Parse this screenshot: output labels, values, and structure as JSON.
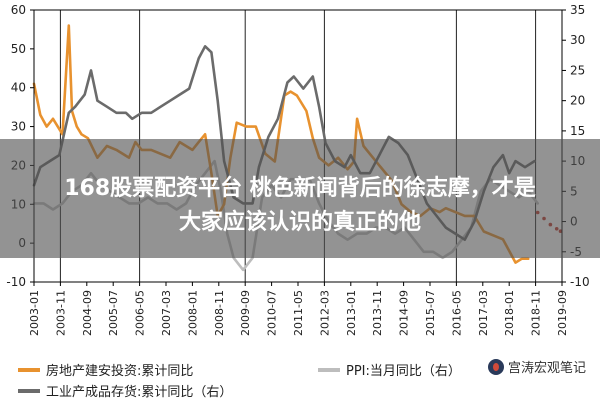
{
  "banner": {
    "line1": "168股票配资平台 桃色新闻背后的徐志摩，才是",
    "line2": "大家应该认识的真正的他"
  },
  "watermark": {
    "text": "宫涛宏观笔记",
    "icon": "wechat-account-icon"
  },
  "chart_data": {
    "type": "line",
    "x_labels": [
      "2003-01",
      "2003-11",
      "2004-09",
      "2005-07",
      "2006-05",
      "2007-03",
      "2008-01",
      "2008-11",
      "2009-09",
      "2010-07",
      "2011-05",
      "2012-03",
      "2013-01",
      "2013-11",
      "2014-09",
      "2015-07",
      "2016-05",
      "2017-03",
      "2018-01",
      "2018-11",
      "2019-09"
    ],
    "y_left": {
      "ticks": [
        -10,
        0,
        10,
        20,
        30,
        40,
        50,
        60
      ],
      "range": [
        -10,
        60
      ]
    },
    "y_right": {
      "ticks": [
        -10,
        -5,
        0,
        5,
        10,
        15,
        20,
        25,
        30,
        35
      ],
      "range": [
        -10,
        35
      ]
    },
    "vertical_lines": [
      "2003-11",
      "2006-05",
      "2009-09",
      "2012-03",
      "2016-05",
      "2018-11"
    ],
    "grid": false,
    "legend_position": "bottom",
    "series": [
      {
        "name": "房地产建安投资:累计同比",
        "axis": "left",
        "color": "#e8922f",
        "x": [
          2003.0,
          2003.2,
          2003.4,
          2003.6,
          2003.9,
          2004.1,
          2004.2,
          2004.35,
          2004.5,
          2004.7,
          2005.0,
          2005.3,
          2005.6,
          2006.0,
          2006.2,
          2006.4,
          2006.7,
          2007.0,
          2007.3,
          2007.6,
          2008.0,
          2008.2,
          2008.4,
          2008.6,
          2008.8,
          2009.0,
          2009.2,
          2009.4,
          2009.7,
          2010.0,
          2010.3,
          2010.6,
          2010.9,
          2011.1,
          2011.3,
          2011.6,
          2011.8,
          2012.0,
          2012.3,
          2012.6,
          2012.9,
          2013.1,
          2013.2,
          2013.4,
          2013.6,
          2013.9,
          2014.3,
          2014.6,
          2014.9,
          2015.2,
          2015.5,
          2015.8,
          2016.0,
          2016.3,
          2016.6,
          2016.9,
          2017.2,
          2017.5,
          2017.8,
          2018.0,
          2018.2,
          2018.4,
          2018.6
        ],
        "values": [
          41,
          33,
          30,
          32,
          28,
          56,
          34,
          30,
          28,
          27,
          22,
          25,
          24,
          22,
          26,
          24,
          24,
          23,
          22,
          26,
          24,
          26,
          28,
          18,
          7,
          10,
          22,
          31,
          30,
          30,
          23,
          21,
          38,
          39,
          38,
          34,
          27,
          22,
          20,
          22,
          19,
          21,
          32,
          25,
          23,
          20,
          16,
          10,
          8,
          7,
          9,
          8,
          9,
          8,
          7,
          7,
          3,
          2,
          1,
          -2,
          -5,
          -4,
          -4
        ]
      },
      {
        "name": "PPI:当月同比（右）",
        "axis": "right",
        "color": "#bdbdbd",
        "x": [
          2003.0,
          2003.3,
          2003.6,
          2003.9,
          2004.2,
          2004.5,
          2004.8,
          2005.1,
          2005.4,
          2005.7,
          2006.0,
          2006.3,
          2006.6,
          2006.9,
          2007.2,
          2007.5,
          2007.8,
          2008.1,
          2008.4,
          2008.7,
          2008.9,
          2009.1,
          2009.3,
          2009.6,
          2009.9,
          2010.2,
          2010.5,
          2010.8,
          2011.1,
          2011.4,
          2011.7,
          2012.0,
          2012.3,
          2012.6,
          2012.9,
          2013.2,
          2013.5,
          2013.8,
          2014.1,
          2014.4,
          2014.7,
          2015.0,
          2015.3,
          2015.6,
          2015.9,
          2016.2,
          2016.5,
          2016.8,
          2017.1,
          2017.4,
          2017.7,
          2018.0,
          2018.3,
          2018.6,
          2018.9
        ],
        "values": [
          3,
          3,
          2,
          3,
          5,
          6,
          8,
          6,
          5,
          4,
          3,
          3,
          4,
          3,
          3,
          2,
          3,
          6,
          8,
          10,
          5,
          -2,
          -6,
          -8,
          -6,
          4,
          6,
          4,
          7,
          7,
          7,
          3,
          0,
          -2,
          -3,
          -2,
          -2,
          -1,
          -1,
          -2,
          -1,
          -3,
          -5,
          -5,
          -6,
          -5,
          -3,
          -1,
          5,
          7,
          6,
          5,
          4,
          5,
          3
        ]
      },
      {
        "name": "工业产成品存货:累计同比（右）",
        "axis": "right",
        "color": "#6b6b6b",
        "x": [
          2003.0,
          2003.2,
          2003.5,
          2003.8,
          2004.1,
          2004.3,
          2004.6,
          2004.8,
          2005.0,
          2005.3,
          2005.6,
          2005.9,
          2006.1,
          2006.4,
          2006.7,
          2007.0,
          2007.3,
          2007.6,
          2007.9,
          2008.2,
          2008.4,
          2008.6,
          2008.8,
          2009.0,
          2009.3,
          2009.6,
          2009.9,
          2010.1,
          2010.4,
          2010.7,
          2011.0,
          2011.2,
          2011.5,
          2011.8,
          2012.0,
          2012.2,
          2012.5,
          2012.8,
          2013.0,
          2013.3,
          2013.6,
          2013.9,
          2014.2,
          2014.5,
          2014.8,
          2015.1,
          2015.4,
          2015.7,
          2016.0,
          2016.3,
          2016.6,
          2016.9,
          2017.2,
          2017.5,
          2017.8,
          2018.0,
          2018.2,
          2018.5,
          2018.8
        ],
        "values": [
          6,
          9,
          10,
          11,
          18,
          19,
          21,
          25,
          20,
          19,
          18,
          18,
          17,
          18,
          18,
          19,
          20,
          21,
          22,
          27,
          29,
          28,
          20,
          10,
          4,
          3,
          3,
          9,
          14,
          17,
          23,
          24,
          22,
          24,
          19,
          13,
          10,
          9,
          11,
          8,
          8,
          11,
          14,
          13,
          11,
          7,
          3,
          1,
          -1,
          -2,
          -3,
          0,
          5,
          9,
          11,
          8,
          10,
          9,
          10
        ]
      }
    ]
  }
}
